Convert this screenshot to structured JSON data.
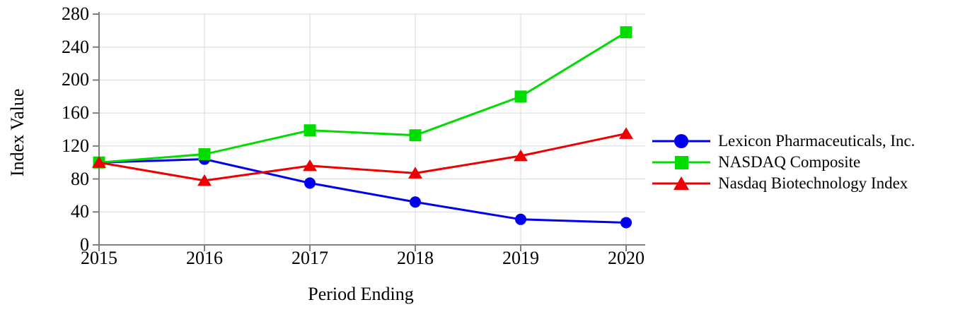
{
  "chart_data": {
    "type": "line",
    "title": "",
    "xlabel": "Period Ending",
    "ylabel": "Index Value",
    "x": [
      "2015",
      "2016",
      "2017",
      "2018",
      "2019",
      "2020"
    ],
    "ylim": [
      0,
      280
    ],
    "yticks": [
      0,
      40,
      80,
      120,
      160,
      200,
      240,
      280
    ],
    "grid": true,
    "legend_position": "right",
    "axis_color": "#7f7f7f",
    "grid_color": "#dadada",
    "text_color": "#000000",
    "series": [
      {
        "name": "Lexicon Pharmaceuticals, Inc.",
        "color": "#0000ee",
        "marker": "circle",
        "values": [
          100,
          104,
          75,
          52,
          31,
          27
        ]
      },
      {
        "name": "NASDAQ Composite",
        "color": "#00dc00",
        "marker": "square",
        "values": [
          100,
          110,
          139,
          133,
          180,
          258
        ]
      },
      {
        "name": "Nasdaq Biotechnology Index",
        "color": "#ee0000",
        "marker": "triangle",
        "values": [
          100,
          78,
          96,
          87,
          108,
          135
        ]
      }
    ]
  }
}
